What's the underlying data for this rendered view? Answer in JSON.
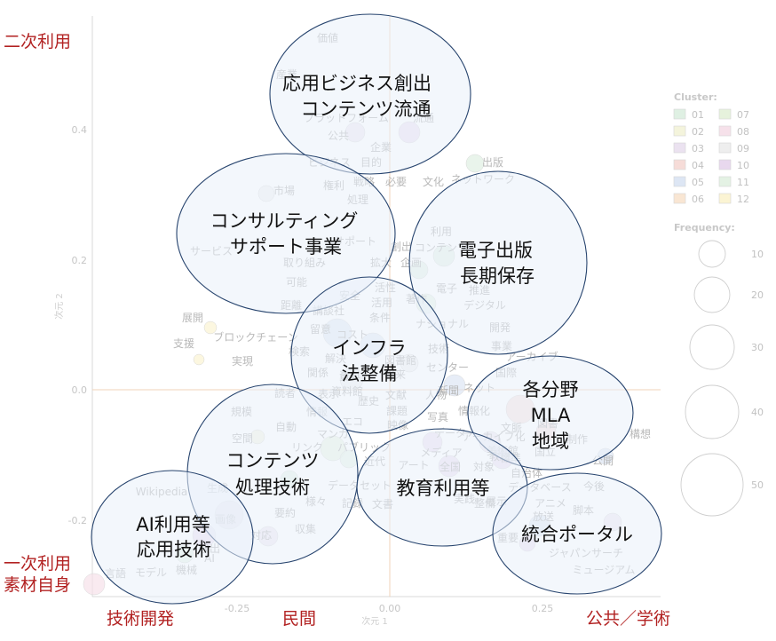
{
  "axes": {
    "x_title": "次元 1",
    "y_title": "次元 2",
    "x_ticks": [
      "-0.25",
      "0.00",
      "0.25"
    ],
    "y_ticks": [
      "0.4",
      "0.2",
      "0.0",
      "-0.2"
    ]
  },
  "corner_labels": {
    "top_left": "二次利用",
    "bottom_left_1": "一次利用",
    "bottom_left_2": "素材自身",
    "bottom_x_1": "技術開発",
    "bottom_x_2": "民間",
    "bottom_x_3": "公共／学術"
  },
  "clusters": [
    {
      "line1": "応用ビジネス創出",
      "line2": "コンテンツ流通"
    },
    {
      "line1": "コンサルティング",
      "line2": "サポート事業"
    },
    {
      "line1": "電子出版",
      "line2": "長期保存"
    },
    {
      "line1": "インフラ",
      "line2": "法整備"
    },
    {
      "line1": "各分野",
      "line2": "MLA",
      "line3": "地域"
    },
    {
      "line1": "コンテンツ",
      "line2": "処理技術"
    },
    {
      "line1": "教育利用等"
    },
    {
      "line1": "AI利用等",
      "line2": "応用技術"
    },
    {
      "line1": "統合ポータル"
    }
  ],
  "words": [
    "価値",
    "産業",
    "プラットフォーム",
    "流通",
    "公共",
    "企業",
    "ビジネス",
    "目的",
    "出版",
    "市場",
    "権利",
    "戦略",
    "必要",
    "文化",
    "ネットワーク",
    "処理",
    "利用",
    "サービス",
    "サポート",
    "創出",
    "取り組み",
    "拡大",
    "企画",
    "コンテンツ",
    "可能",
    "電子",
    "推進",
    "距離",
    "講談社",
    "安全",
    "活性",
    "活用",
    "デジタル",
    "著作",
    "展開",
    "条件",
    "ナショナル",
    "開発",
    "支援",
    "ブロックチェーン",
    "留意",
    "コスト",
    "技術",
    "事業",
    "実現",
    "検索",
    "解決",
    "図書館",
    "アーカイブ",
    "将来",
    "関係",
    "センター",
    "国際",
    "ネット",
    "読者",
    "表示",
    "歴史",
    "情報",
    "資料",
    "資料館",
    "人物",
    "新聞",
    "文献",
    "規模",
    "課題",
    "写真",
    "情報化",
    "図書",
    "文脈",
    "自動",
    "エコ",
    "映像",
    "空間",
    "マンガ",
    "データ",
    "アーカイブ化",
    "美術館",
    "制作",
    "構想",
    "リンク",
    "パブリック",
    "メディア",
    "国立",
    "公開",
    "標準",
    "近代",
    "アート",
    "全国",
    "対象",
    "教材",
    "自治体",
    "今後",
    "生成",
    "データセット",
    "データベース",
    "アニメ",
    "様々",
    "記録",
    "文書",
    "実践",
    "展示",
    "整備",
    "脚本",
    "画像",
    "要約",
    "収集",
    "放送",
    "対応",
    "検出",
    "重要",
    "ジャパンサーチ",
    "ミュージアム",
    "モデル",
    "機械",
    "言語",
    "Wikipedia",
    "AI"
  ],
  "legend": {
    "cluster_title": "Cluster:",
    "clusters": [
      "01",
      "02",
      "03",
      "04",
      "05",
      "06",
      "07",
      "08",
      "09",
      "10",
      "11",
      "12"
    ],
    "cluster_colors": [
      "#dff0e3",
      "#f4f4dc",
      "#ebe2f0",
      "#f6dcd8",
      "#dde6f4",
      "#f9e6d3",
      "#e6f2dc",
      "#f6e1ea",
      "#eeeeee",
      "#e8d8ee",
      "#e4f2e4",
      "#fbf4d3"
    ],
    "frequency_title": "Frequency:",
    "sizes": [
      "10",
      "20",
      "30",
      "40",
      "50"
    ]
  },
  "colors": {
    "ellipse_stroke": "#27446e",
    "ellipse_fill": "#eaf1fa",
    "corner_text": "#b22222",
    "axis_line": "#f2d3b8"
  }
}
